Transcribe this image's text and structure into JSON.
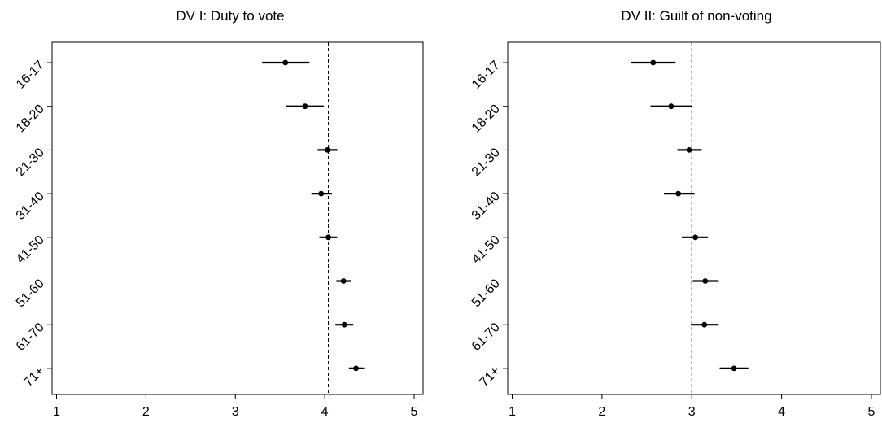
{
  "chart_data": [
    {
      "type": "scatter",
      "subtype": "dot-and-whisker",
      "title": "DV I: Duty to vote",
      "categories": [
        "16-17",
        "18-20",
        "21-30",
        "31-40",
        "41-50",
        "51-60",
        "61-70",
        "71+"
      ],
      "values": [
        3.56,
        3.78,
        4.03,
        3.96,
        4.04,
        4.21,
        4.22,
        4.35
      ],
      "ci_low": [
        3.3,
        3.57,
        3.92,
        3.85,
        3.94,
        4.13,
        4.12,
        4.27
      ],
      "ci_high": [
        3.83,
        3.99,
        4.14,
        4.08,
        4.14,
        4.3,
        4.32,
        4.44
      ],
      "reference_line": 4.04,
      "xlim": [
        0.95,
        5.1
      ],
      "xticks": [
        "1",
        "2",
        "3",
        "4",
        "5"
      ],
      "grid": false
    },
    {
      "type": "scatter",
      "subtype": "dot-and-whisker",
      "title": "DV II: Guilt of non-voting",
      "categories": [
        "16-17",
        "18-20",
        "21-30",
        "31-40",
        "41-50",
        "51-60",
        "61-70",
        "71+"
      ],
      "values": [
        2.57,
        2.77,
        2.97,
        2.85,
        3.04,
        3.15,
        3.14,
        3.47
      ],
      "ci_low": [
        2.32,
        2.54,
        2.84,
        2.69,
        2.89,
        3.01,
        2.99,
        3.31
      ],
      "ci_high": [
        2.82,
        3.0,
        3.11,
        3.03,
        3.18,
        3.3,
        3.3,
        3.63
      ],
      "reference_line": 3.0,
      "xlim": [
        0.95,
        5.1
      ],
      "xticks": [
        "1",
        "2",
        "3",
        "4",
        "5"
      ],
      "grid": false
    }
  ]
}
